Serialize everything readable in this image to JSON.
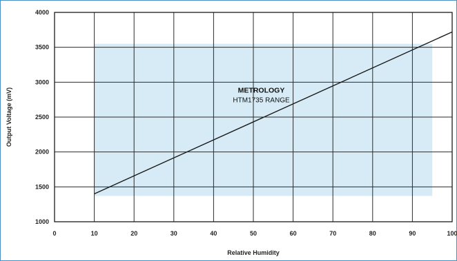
{
  "chart_data": {
    "type": "line",
    "xlabel": "Relative Humidity",
    "ylabel": "Output Voltage (mV)",
    "xlim": [
      0,
      100
    ],
    "ylim": [
      1000,
      4000
    ],
    "xticks": [
      0,
      10,
      20,
      30,
      40,
      50,
      60,
      70,
      80,
      90,
      100
    ],
    "yticks": [
      1000,
      1500,
      2000,
      2500,
      3000,
      3500,
      4000
    ],
    "grid": true,
    "series": [
      {
        "x": [
          10,
          100
        ],
        "y": [
          1400,
          3720
        ]
      }
    ],
    "range": {
      "x": [
        10,
        95
      ],
      "y": [
        1370,
        3550
      ],
      "label_line1": "METROLOGY",
      "label_line2": "HTM1735 RANGE",
      "label_anchor": [
        52,
        2850
      ],
      "color": "#d6ebf5"
    },
    "line_color": "#1a1a1a",
    "frame_color": "#4a8fc4"
  }
}
